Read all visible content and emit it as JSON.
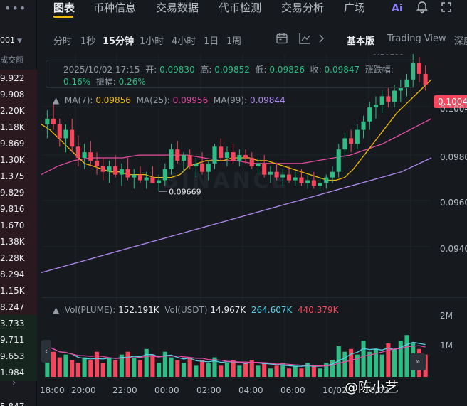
{
  "left_panel": {
    "menu": "•••",
    "pair": "001",
    "header": "成交额",
    "rows": [
      {
        "value": "9.922",
        "tone": "red"
      },
      {
        "value": "9.908",
        "tone": "red"
      },
      {
        "value": "2.20K",
        "tone": "red"
      },
      {
        "value": "1.18K",
        "tone": "red"
      },
      {
        "value": "9.869",
        "tone": "red"
      },
      {
        "value": "1.30K",
        "tone": "red"
      },
      {
        "value": "1.375",
        "tone": "red"
      },
      {
        "value": "9.829",
        "tone": "red"
      },
      {
        "value": "9.816",
        "tone": "red"
      },
      {
        "value": "1.670",
        "tone": "red"
      },
      {
        "value": "1.38K",
        "tone": "red"
      },
      {
        "value": "2.28K",
        "tone": "red"
      },
      {
        "value": "8.294",
        "tone": "red"
      },
      {
        "value": "1.15K",
        "tone": "red"
      },
      {
        "value": "8.247",
        "tone": "red"
      },
      {
        "value": "3.733",
        "tone": "green"
      },
      {
        "value": "9.711",
        "tone": "green"
      },
      {
        "value": "9.653",
        "tone": "green"
      },
      {
        "value": "1.984",
        "tone": "green"
      }
    ],
    "bottom_value": "5.847",
    "arrow": "›"
  },
  "nav": {
    "tabs": [
      "图表",
      "币种信息",
      "交易数据",
      "代币检测",
      "交易分析",
      "广场"
    ],
    "active": "图表",
    "icons": [
      "ai-icon",
      "bell-icon",
      "expand-icon"
    ]
  },
  "toolbar": {
    "intervals": [
      "分时",
      "1秒",
      "15分钟",
      "1小时",
      "4小时",
      "1日",
      "1周"
    ],
    "active_interval": "15分钟",
    "views": [
      "基本版",
      "Trading View",
      "深度"
    ],
    "active_view": "基本版"
  },
  "ohlc": {
    "datetime": "2025/10/02 17:15",
    "open_label": "开:",
    "open": "0.09830",
    "high_label": "高:",
    "high": "0.09852",
    "low_label": "低:",
    "low": "0.09826",
    "close_label": "收:",
    "close": "0.09847",
    "change_label": "涨跌幅:",
    "change": "0.16%",
    "amp_label": "振幅:",
    "amp": "0.26%"
  },
  "ma_legend": {
    "ma7_label": "MA(7):",
    "ma7": "0.09856",
    "ma25_label": "MA(25):",
    "ma25": "0.09956",
    "ma99_label": "MA(99):",
    "ma99": "0.09844"
  },
  "vol_legend": {
    "vol_label": "Vol(PLUME):",
    "vol": "152.191K",
    "usdt_label": "Vol(USDT)",
    "usdt": "14.967K",
    "ma1": "264.607K",
    "ma2": "440.379K"
  },
  "price_tag": "0.1004",
  "y_axis": [
    "0.1004",
    "0.0980",
    "0.0960",
    "0.0940"
  ],
  "vol_axis": [
    "2M",
    "1M"
  ],
  "x_axis": [
    "18:00",
    "20:00",
    "22:00",
    "00:00",
    "02:00",
    "04:00",
    "06:00",
    "10/02",
    "10/02"
  ],
  "annotations": {
    "high": "0.10159",
    "low": "0.09669"
  },
  "watermark_brand": "BINANCE",
  "user_watermark": "@陈小艺",
  "colors": {
    "up": "#2ebd85",
    "down": "#f6465d",
    "ma7": "#f0b90b",
    "ma25": "#e54ca4",
    "ma99": "#b18bf0",
    "bg": "#161a1e",
    "accent": "#f0b90b"
  },
  "chart_data": {
    "type": "candlestick",
    "x_range": [
      "18:00",
      "10/02"
    ],
    "ylim": [
      0.093,
      0.101
    ],
    "ohlc_series": [
      [
        0.099,
        0.0995,
        0.0985,
        0.0992
      ],
      [
        0.0992,
        0.0998,
        0.0988,
        0.099
      ],
      [
        0.099,
        0.0992,
        0.0982,
        0.0985
      ],
      [
        0.0985,
        0.099,
        0.098,
        0.0988
      ],
      [
        0.0988,
        0.0992,
        0.098,
        0.0982
      ],
      [
        0.0982,
        0.0986,
        0.0975,
        0.0978
      ],
      [
        0.0978,
        0.0983,
        0.0974,
        0.098
      ],
      [
        0.098,
        0.0984,
        0.0975,
        0.0977
      ],
      [
        0.0977,
        0.098,
        0.0972,
        0.0975
      ],
      [
        0.0975,
        0.0978,
        0.097,
        0.0973
      ],
      [
        0.0973,
        0.0977,
        0.0969,
        0.0975
      ],
      [
        0.0975,
        0.0979,
        0.0971,
        0.0972
      ],
      [
        0.0972,
        0.0976,
        0.0968,
        0.0974
      ],
      [
        0.0974,
        0.0978,
        0.097,
        0.0971
      ],
      [
        0.0971,
        0.0974,
        0.0967,
        0.0972
      ],
      [
        0.0972,
        0.0975,
        0.0969,
        0.097
      ],
      [
        0.097,
        0.0973,
        0.0967,
        0.0971
      ],
      [
        0.0971,
        0.0975,
        0.0969,
        0.0969
      ],
      [
        0.0969,
        0.0972,
        0.0966,
        0.097
      ],
      [
        0.097,
        0.0976,
        0.0968,
        0.0974
      ],
      [
        0.0974,
        0.0983,
        0.0972,
        0.0981
      ],
      [
        0.0981,
        0.0984,
        0.0976,
        0.0977
      ],
      [
        0.0977,
        0.098,
        0.0973,
        0.0979
      ],
      [
        0.0979,
        0.0981,
        0.0974,
        0.0975
      ],
      [
        0.0975,
        0.0978,
        0.0971,
        0.0976
      ],
      [
        0.0976,
        0.098,
        0.0972,
        0.0973
      ],
      [
        0.0973,
        0.0977,
        0.097,
        0.0976
      ],
      [
        0.0976,
        0.0983,
        0.0974,
        0.0982
      ],
      [
        0.0982,
        0.0985,
        0.0977,
        0.0978
      ],
      [
        0.0978,
        0.0982,
        0.0975,
        0.098
      ],
      [
        0.098,
        0.0983,
        0.0976,
        0.0977
      ],
      [
        0.0977,
        0.0981,
        0.0975,
        0.0979
      ],
      [
        0.0979,
        0.0981,
        0.0976,
        0.0978
      ],
      [
        0.0978,
        0.098,
        0.0974,
        0.0975
      ],
      [
        0.0975,
        0.0978,
        0.0972,
        0.0976
      ],
      [
        0.0976,
        0.0979,
        0.0971,
        0.0972
      ],
      [
        0.0972,
        0.0975,
        0.0969,
        0.0973
      ],
      [
        0.0973,
        0.0976,
        0.097,
        0.0971
      ],
      [
        0.0971,
        0.0974,
        0.0968,
        0.0972
      ],
      [
        0.0972,
        0.0975,
        0.0969,
        0.097
      ],
      [
        0.097,
        0.0973,
        0.0968,
        0.0971
      ],
      [
        0.0971,
        0.0974,
        0.0968,
        0.0969
      ],
      [
        0.0969,
        0.0972,
        0.0967,
        0.097
      ],
      [
        0.097,
        0.0973,
        0.0967,
        0.0968
      ],
      [
        0.0968,
        0.0971,
        0.0966,
        0.0969
      ],
      [
        0.0969,
        0.0972,
        0.0967,
        0.0971
      ],
      [
        0.0971,
        0.0975,
        0.0969,
        0.0973
      ],
      [
        0.0973,
        0.0983,
        0.0971,
        0.0981
      ],
      [
        0.0981,
        0.0987,
        0.0978,
        0.0985
      ],
      [
        0.0985,
        0.0988,
        0.098,
        0.0983
      ],
      [
        0.0983,
        0.099,
        0.0981,
        0.0988
      ],
      [
        0.0988,
        0.0993,
        0.0985,
        0.0991
      ],
      [
        0.0991,
        0.0998,
        0.0988,
        0.0996
      ],
      [
        0.0996,
        0.1,
        0.0992,
        0.0997
      ],
      [
        0.0997,
        0.1002,
        0.0994,
        0.1
      ],
      [
        0.1,
        0.1003,
        0.0996,
        0.0998
      ],
      [
        0.0998,
        0.1004,
        0.0996,
        0.1002
      ],
      [
        0.1002,
        0.1006,
        0.0998,
        0.1003
      ],
      [
        0.1003,
        0.1008,
        0.1,
        0.1006
      ],
      [
        0.1006,
        0.1016,
        0.1003,
        0.1012
      ],
      [
        0.1012,
        0.1014,
        0.1005,
        0.1008
      ],
      [
        0.1008,
        0.1011,
        0.1002,
        0.1004
      ]
    ],
    "volume_series": [
      1.1,
      0.9,
      0.7,
      0.8,
      0.6,
      0.5,
      0.7,
      0.6,
      0.9,
      0.5,
      0.7,
      0.6,
      0.8,
      0.9,
      0.7,
      0.6,
      1.0,
      0.8,
      0.5,
      0.9,
      0.7,
      0.6,
      0.5,
      0.7,
      0.4,
      0.6,
      0.5,
      0.7,
      0.4,
      0.5,
      0.6,
      0.4,
      0.5,
      0.6,
      0.4,
      0.5,
      0.3,
      0.4,
      0.5,
      0.3,
      0.4,
      0.3,
      0.5,
      0.4,
      0.3,
      0.5,
      0.6,
      1.1,
      0.9,
      1.0,
      0.8,
      1.3,
      0.9,
      1.0,
      0.8,
      1.2,
      1.0,
      1.3,
      1.5,
      1.2,
      1.0,
      0.8
    ],
    "ma7_series": [
      0.099,
      0.0988,
      0.0985,
      0.0982,
      0.0979,
      0.0976,
      0.0975,
      0.0974,
      0.0973,
      0.0973,
      0.0972,
      0.0972,
      0.0972,
      0.0971,
      0.0971,
      0.0971,
      0.0972,
      0.0975,
      0.0976,
      0.0977,
      0.0977,
      0.0977,
      0.0978,
      0.0978,
      0.0978,
      0.0977,
      0.0977,
      0.0976,
      0.0975,
      0.0974,
      0.0973,
      0.0972,
      0.0971,
      0.097,
      0.097,
      0.0971,
      0.0974,
      0.0978,
      0.0982,
      0.0986,
      0.099,
      0.0994,
      0.0997,
      0.1,
      0.1003,
      0.1006
    ],
    "ma25_series": [
      0.0972,
      0.0975,
      0.0977,
      0.0978,
      0.0978,
      0.0978,
      0.0979,
      0.0979,
      0.0979,
      0.0979,
      0.0978,
      0.0977,
      0.0977,
      0.0976,
      0.0976,
      0.0976,
      0.0976,
      0.0977,
      0.0978,
      0.0979,
      0.0981,
      0.0983,
      0.0986,
      0.0989,
      0.0992
    ],
    "ma99_series": [
      0.0937,
      0.094,
      0.0943,
      0.0946,
      0.0949,
      0.0952,
      0.0955,
      0.0958,
      0.0961,
      0.0964,
      0.0967,
      0.097,
      0.0973,
      0.0978
    ]
  }
}
